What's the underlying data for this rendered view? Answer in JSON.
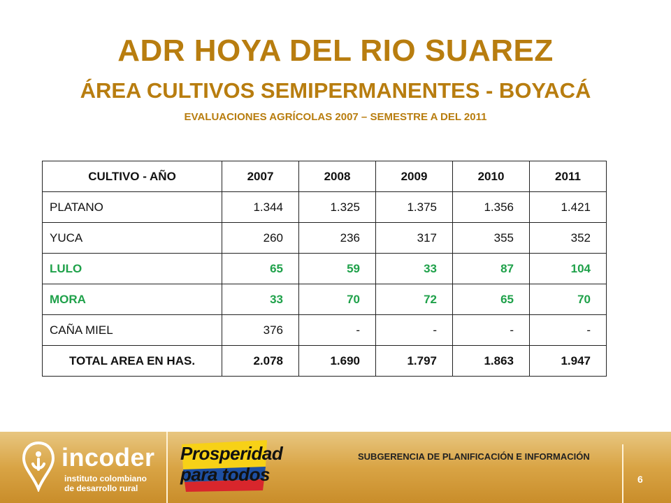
{
  "title": {
    "main": "ADR HOYA DEL RIO SUAREZ",
    "sub": "ÁREA CULTIVOS SEMIPERMANENTES  - BOYACÁ",
    "sub2": "EVALUACIONES AGRÍCOLAS 2007 – SEMESTRE A DEL 2011"
  },
  "table": {
    "headers": [
      "CULTIVO  - AÑO",
      "2007",
      "2008",
      "2009",
      "2010",
      "2011"
    ],
    "rows": [
      {
        "name": "PLATANO",
        "values": [
          "1.344",
          "1.325",
          "1.375",
          "1.356",
          "1.421"
        ]
      },
      {
        "name": "YUCA",
        "values": [
          "260",
          "236",
          "317",
          "355",
          "352"
        ]
      },
      {
        "name": "LULO",
        "values": [
          "65",
          "59",
          "33",
          "87",
          "104"
        ]
      },
      {
        "name": "MORA",
        "values": [
          "33",
          "70",
          "72",
          "65",
          "70"
        ]
      },
      {
        "name": "CAÑA MIEL",
        "values": [
          "376",
          "-",
          "-",
          "-",
          "-"
        ]
      }
    ],
    "total": {
      "name": "TOTAL AREA EN HAS.",
      "values": [
        "2.078",
        "1.690",
        "1.797",
        "1.863",
        "1.947"
      ]
    },
    "highlight_color": "#1fa14a"
  },
  "footer": {
    "logo_name": "incoder",
    "logo_tagline_1": "instituto colombiano",
    "logo_tagline_2": "de desarrollo rural",
    "badge_line_1": "Prosperidad",
    "badge_line_2": "para todos",
    "department": "SUBGERENCIA DE PLANIFICACIÓN E INFORMACIÓN",
    "page_number": "6"
  },
  "colors": {
    "title": "#b87d0f",
    "footer_gold": "#d9a445",
    "badge_yellow": "#f7d117",
    "badge_blue": "#1e4fa1",
    "badge_red": "#d8262c"
  }
}
